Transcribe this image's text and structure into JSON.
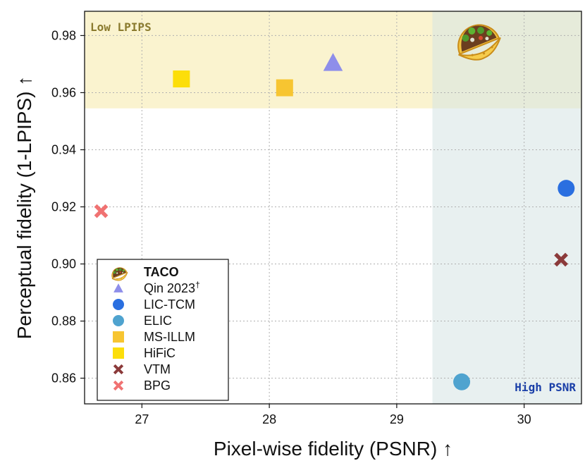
{
  "chart_data": {
    "type": "scatter",
    "title": "",
    "xlabel": "Pixel-wise fidelity (PSNR) ↑",
    "ylabel": "Perceptual fidelity (1-LPIPS) ↑",
    "xlim": [
      26.55,
      30.45
    ],
    "ylim": [
      0.851,
      0.9885
    ],
    "xticks": [
      27,
      28,
      29,
      30
    ],
    "yticks": [
      0.86,
      0.88,
      0.9,
      0.92,
      0.94,
      0.96,
      0.98
    ],
    "ytick_labels": [
      "0.86",
      "0.88",
      "0.90",
      "0.92",
      "0.94",
      "0.96",
      "0.98"
    ],
    "grid": true,
    "regions": [
      {
        "name": "Low LPIPS",
        "label": "Low LPIPS",
        "y_min": 0.9545,
        "color": "#f5e9a8",
        "label_color": "#8a7a2e"
      },
      {
        "name": "High PSNR",
        "label": "High PSNR",
        "x_min": 29.28,
        "color": "#d5e3e3",
        "label_color": "#1a3fa8"
      }
    ],
    "legend_position": "lower-left",
    "series": [
      {
        "name": "TACO",
        "marker": "taco",
        "color": "#e3a52c",
        "x": [
          29.62
        ],
        "y": [
          0.9795
        ]
      },
      {
        "name": "Qin 2023",
        "suffix": "†",
        "marker": "triangle",
        "color": "#8e8eea",
        "x": [
          28.5
        ],
        "y": [
          0.9705
        ]
      },
      {
        "name": "LIC-TCM",
        "marker": "circle",
        "color": "#2a6fe0",
        "x": [
          30.33
        ],
        "y": [
          0.9265
        ]
      },
      {
        "name": "ELIC",
        "marker": "circle",
        "color": "#4fa3cf",
        "x": [
          29.51
        ],
        "y": [
          0.8587
        ]
      },
      {
        "name": "MS-ILLM",
        "marker": "square",
        "color": "#f7c531",
        "x": [
          28.12
        ],
        "y": [
          0.9617
        ]
      },
      {
        "name": "HiFiC",
        "marker": "square",
        "color": "#fcde0a",
        "x": [
          27.31
        ],
        "y": [
          0.9648
        ]
      },
      {
        "name": "VTM",
        "marker": "x",
        "color": "#8b3a3a",
        "x": [
          30.29
        ],
        "y": [
          0.9015
        ]
      },
      {
        "name": "BPG",
        "marker": "x",
        "color": "#f07272",
        "x": [
          26.68
        ],
        "y": [
          0.9185
        ]
      }
    ]
  }
}
